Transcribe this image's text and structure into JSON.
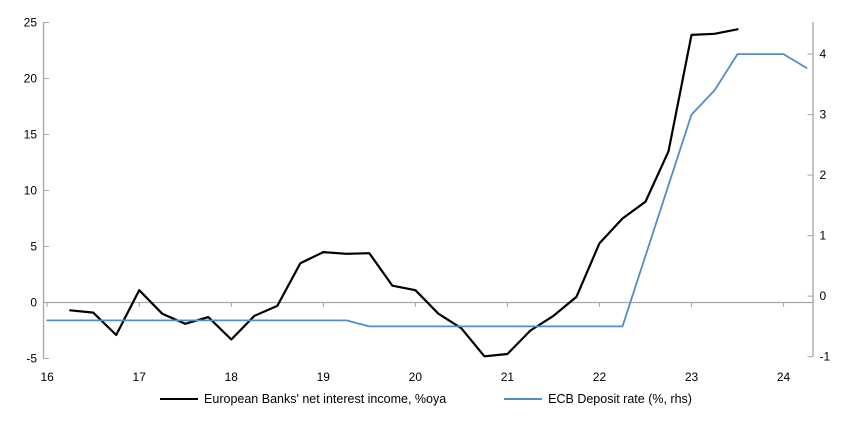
{
  "chart_data": {
    "type": "line",
    "title": "",
    "xlabel": "",
    "ylabel_left": "",
    "ylabel_right": "",
    "grid": "off",
    "legend_position": "bottom",
    "zero_line": true,
    "colors": {
      "axis": "#a6a6a6",
      "text": "#000000",
      "nii_line": "#000000",
      "ecb_line": "#538cc6"
    },
    "x_axis": {
      "ticks": [
        16,
        17,
        18,
        19,
        20,
        21,
        22,
        23,
        24
      ],
      "min": 15.96,
      "max": 24.32
    },
    "left_axis": {
      "ticks": [
        25,
        20,
        15,
        10,
        5,
        0,
        -5
      ],
      "min": -5,
      "max": 25.05
    },
    "right_axis": {
      "ticks": [
        4,
        3,
        2,
        1,
        0,
        -1
      ],
      "min": -1.03,
      "max": 4.53
    },
    "series": [
      {
        "name": "European Banks' net interest income, %oya",
        "axis": "left",
        "color": "#000000",
        "width": 2.2,
        "points": [
          [
            16.25,
            -0.7
          ],
          [
            16.5,
            -0.9
          ],
          [
            16.75,
            -2.9
          ],
          [
            17.0,
            1.1
          ],
          [
            17.25,
            -1.0
          ],
          [
            17.5,
            -1.9
          ],
          [
            17.75,
            -1.3
          ],
          [
            18.0,
            -3.3
          ],
          [
            18.25,
            -1.2
          ],
          [
            18.5,
            -0.3
          ],
          [
            18.75,
            3.5
          ],
          [
            19.0,
            4.5
          ],
          [
            19.25,
            4.35
          ],
          [
            19.5,
            4.4
          ],
          [
            19.75,
            1.5
          ],
          [
            20.0,
            1.1
          ],
          [
            20.25,
            -1.0
          ],
          [
            20.5,
            -2.3
          ],
          [
            20.75,
            -4.8
          ],
          [
            21.0,
            -4.6
          ],
          [
            21.25,
            -2.5
          ],
          [
            21.5,
            -1.2
          ],
          [
            21.75,
            0.5
          ],
          [
            22.0,
            5.3
          ],
          [
            22.25,
            7.5
          ],
          [
            22.5,
            9.0
          ],
          [
            22.75,
            13.5
          ],
          [
            23.0,
            23.9
          ],
          [
            23.25,
            24.0
          ],
          [
            23.5,
            24.4
          ]
        ]
      },
      {
        "name": "ECB Deposit rate (%, rhs)",
        "axis": "right",
        "color": "#538cc6",
        "width": 1.8,
        "points": [
          [
            16.0,
            -0.4
          ],
          [
            19.25,
            -0.4
          ],
          [
            19.5,
            -0.5
          ],
          [
            22.25,
            -0.5
          ],
          [
            23.0,
            3.0
          ],
          [
            23.25,
            3.4
          ],
          [
            23.5,
            4.0
          ],
          [
            24.0,
            4.0
          ],
          [
            24.25,
            3.77
          ]
        ]
      }
    ]
  }
}
